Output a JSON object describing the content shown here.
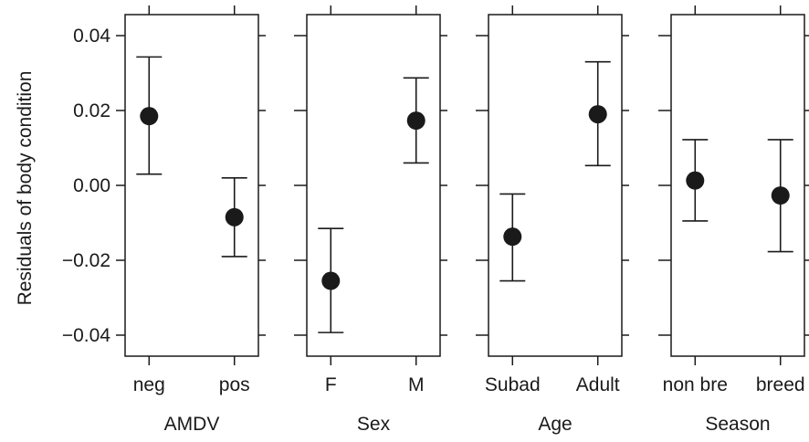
{
  "chart_data": {
    "type": "scatter",
    "ylabel": "Residuals of body condition",
    "ylim": [
      -0.045,
      0.045
    ],
    "yticks": [
      "0.04",
      "0.02",
      "0.00",
      "−0.02",
      "−0.04"
    ],
    "yticks_values": [
      0.04,
      0.02,
      0.0,
      -0.02,
      -0.04
    ],
    "grid": false,
    "panels": [
      {
        "xlabel": "AMDV",
        "categories": [
          "neg",
          "pos"
        ],
        "estimates": [
          0.0185,
          -0.0085
        ],
        "lower": [
          0.003,
          -0.019
        ],
        "upper": [
          0.0343,
          0.002
        ]
      },
      {
        "xlabel": "Sex",
        "categories": [
          "F",
          "M"
        ],
        "estimates": [
          -0.0255,
          0.0173
        ],
        "lower": [
          -0.0393,
          0.006
        ],
        "upper": [
          -0.0115,
          0.0287
        ]
      },
      {
        "xlabel": "Age",
        "categories": [
          "Subad",
          "Adult"
        ],
        "estimates": [
          -0.0137,
          0.019
        ],
        "lower": [
          -0.0255,
          0.0053
        ],
        "upper": [
          -0.0023,
          0.033
        ]
      },
      {
        "xlabel": "Season",
        "categories": [
          "non bre",
          "breed"
        ],
        "estimates": [
          0.0013,
          -0.0027
        ],
        "lower": [
          -0.0095,
          -0.0177
        ],
        "upper": [
          0.0122,
          0.0122
        ]
      }
    ]
  }
}
